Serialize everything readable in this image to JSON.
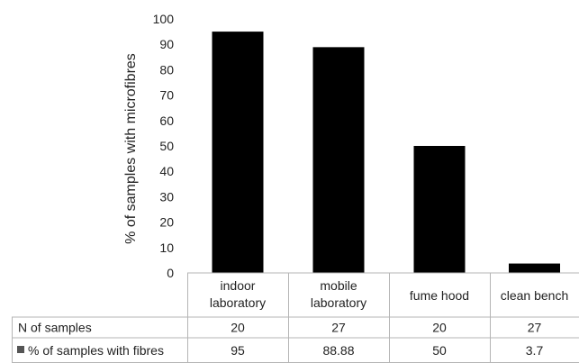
{
  "chart_data": {
    "type": "bar",
    "title": "",
    "xlabel": "",
    "ylabel": "% of samples with microfibres",
    "ylim": [
      0,
      100
    ],
    "yticks": [
      0,
      10,
      20,
      30,
      40,
      50,
      60,
      70,
      80,
      90,
      100
    ],
    "grid": false,
    "categories": [
      [
        "indoor",
        "laboratory"
      ],
      [
        "mobile",
        "laboratory"
      ],
      [
        "fume hood"
      ],
      [
        "clean bench"
      ]
    ],
    "series": [
      {
        "name": "% of samples with fibres",
        "values": [
          95,
          88.88,
          50,
          3.7
        ],
        "color": "#000000"
      }
    ],
    "table": {
      "rows": [
        {
          "label": "N of samples",
          "values": [
            "20",
            "27",
            "20",
            "27"
          ]
        },
        {
          "label": "% of samples with fibres",
          "values": [
            "95",
            "88.88",
            "50",
            "3.7"
          ],
          "legend_key": true
        }
      ]
    }
  }
}
